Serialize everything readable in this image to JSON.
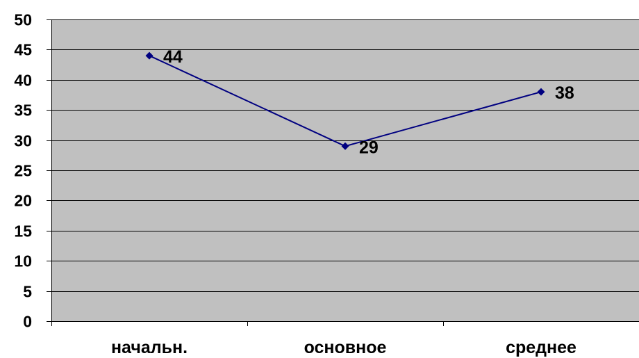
{
  "chart_data": {
    "type": "line",
    "categories": [
      "начальн.",
      "основное",
      "среднее"
    ],
    "series": [
      {
        "values": [
          44,
          29,
          38
        ],
        "color": "#000080"
      }
    ],
    "data_labels": [
      "44",
      "29",
      "38"
    ],
    "ylim": [
      0,
      50
    ],
    "y_ticks": [
      0,
      5,
      10,
      15,
      20,
      25,
      30,
      35,
      40,
      45,
      50
    ],
    "y_tick_labels": [
      "0",
      "5",
      "10",
      "15",
      "20",
      "25",
      "30",
      "35",
      "40",
      "45",
      "50"
    ],
    "grid": true,
    "plot_background": "#C0C0C0",
    "gridline_color": "#000000",
    "legend": "none"
  }
}
